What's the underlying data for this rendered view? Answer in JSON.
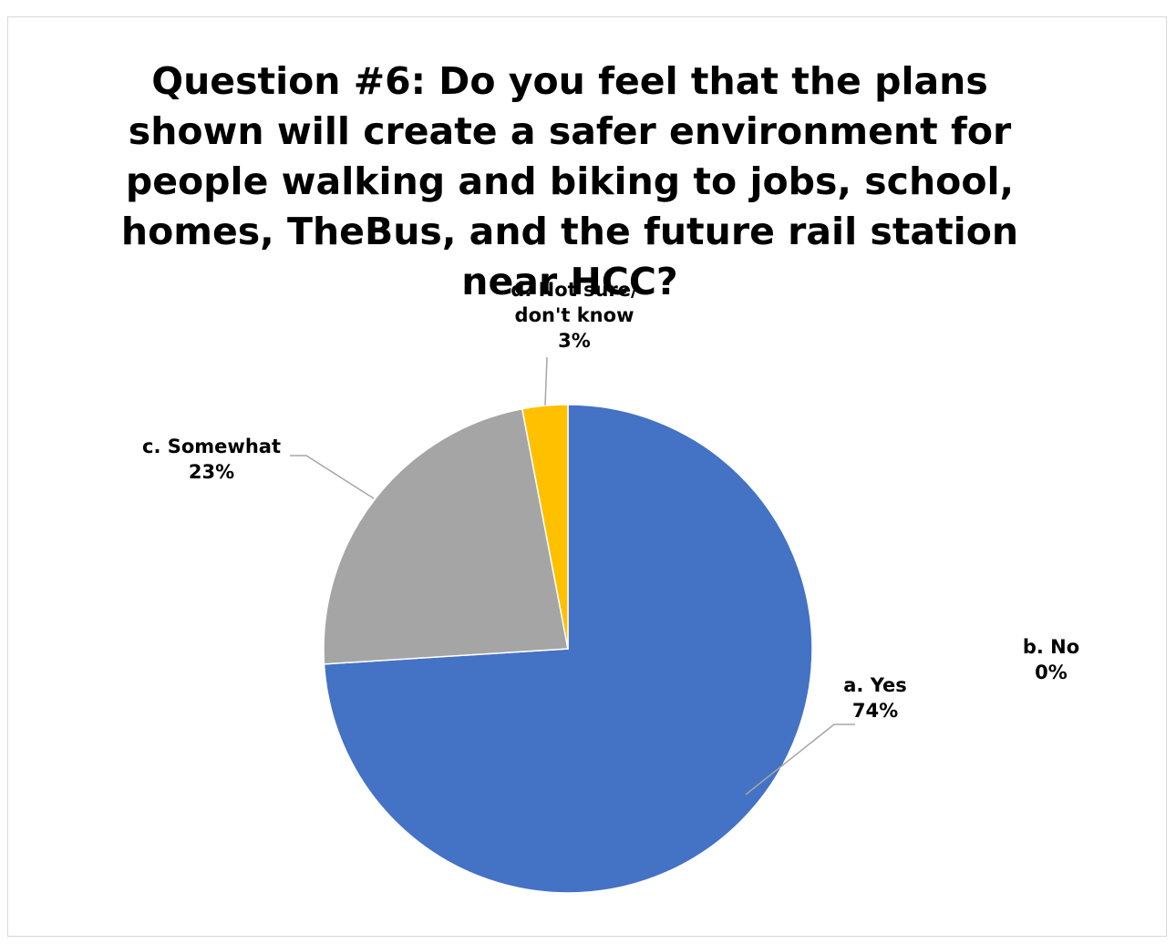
{
  "chart_data": {
    "type": "pie",
    "title": "Question #6: Do you feel that the plans shown will create a safer environment for people walking and biking to jobs, school, homes, TheBus, and the future rail station near HCC?",
    "categories": [
      "a. Yes",
      "b. No",
      "c. Somewhat",
      "d. Not sure/ don't know"
    ],
    "values": [
      74,
      0,
      23,
      3
    ],
    "value_labels": [
      "74%",
      "0%",
      "23%",
      "3%"
    ],
    "colors": [
      "#4472c4",
      "#ed7d31",
      "#a5a5a5",
      "#ffc000"
    ]
  }
}
